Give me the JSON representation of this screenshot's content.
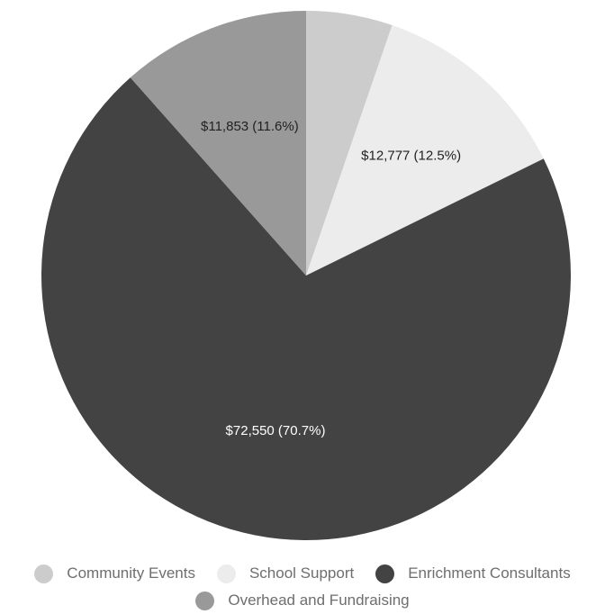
{
  "chart_data": {
    "type": "pie",
    "title": "",
    "slices": [
      {
        "label": "Community Events",
        "value": 5408,
        "display": "",
        "color": "#cccccc"
      },
      {
        "label": "School Support",
        "value": 12777,
        "display": "$12,777 (12.5%)",
        "color": "#ececec"
      },
      {
        "label": "Enrichment Consultants",
        "value": 72550,
        "display": "$72,550 (70.7%)",
        "color": "#434343"
      },
      {
        "label": "Overhead and Fundraising",
        "value": 11853,
        "display": "$11,853 (11.6%)",
        "color": "#999999"
      }
    ],
    "legend_position": "bottom",
    "label_colors": {
      "on_dark": "#ffffff",
      "on_light": "#222222"
    }
  },
  "legend": {
    "rows": [
      [
        0,
        1,
        2
      ],
      [
        3
      ]
    ]
  }
}
